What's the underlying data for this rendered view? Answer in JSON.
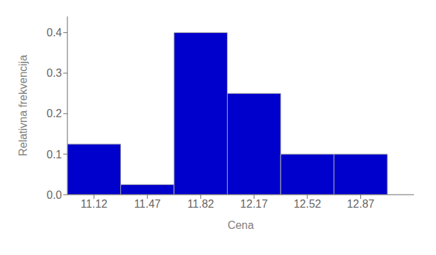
{
  "chart_data": {
    "type": "histogram",
    "xlabel": "Cena",
    "ylabel": "Relativna frekvencija",
    "bins": [
      10.945,
      11.295,
      11.645,
      11.995,
      12.345,
      12.695,
      13.045
    ],
    "values": [
      0.125,
      0.025,
      0.4,
      0.25,
      0.1,
      0.1
    ],
    "color": "#0000cc",
    "xlim": [
      10.945,
      13.22
    ],
    "xticks": [
      11.12,
      11.47,
      11.82,
      12.17,
      12.52,
      12.87
    ],
    "ylim": [
      0.0,
      0.44
    ],
    "yticks": [
      {
        "value": 0.0,
        "label": "0.0"
      },
      0.1,
      0.2,
      0.3,
      0.4
    ],
    "grid": false
  }
}
